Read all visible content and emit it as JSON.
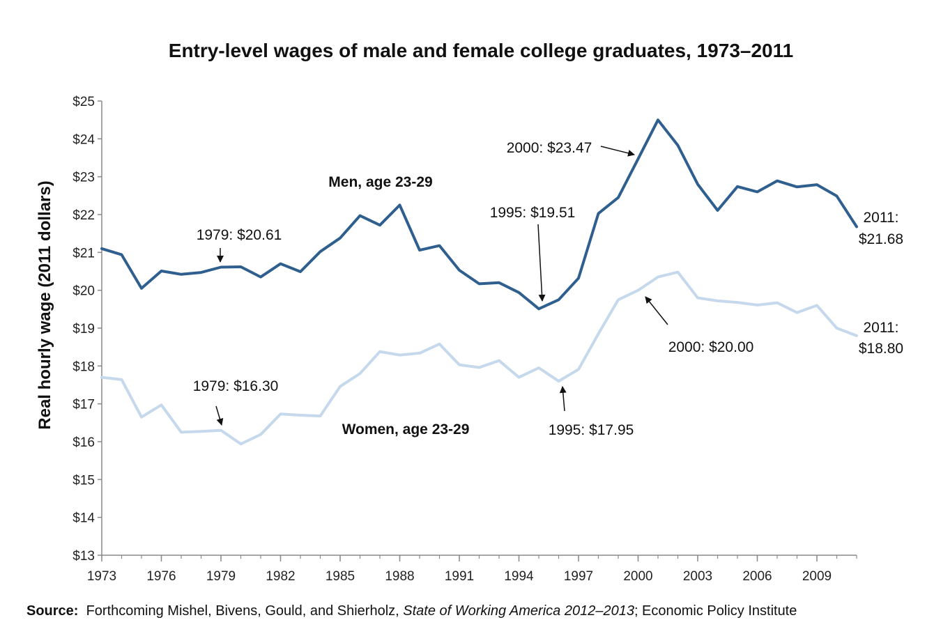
{
  "chart_data": {
    "type": "line",
    "title": "Entry-level wages of male and female college graduates, 1973–2011",
    "ylabel": "Real hourly wage (2011 dollars)",
    "xlabel": "",
    "xlim": [
      1973,
      2011
    ],
    "ylim": [
      13,
      25
    ],
    "grid": false,
    "x_ticks": [
      "1973",
      "1976",
      "1979",
      "1982",
      "1985",
      "1988",
      "1991",
      "1994",
      "1997",
      "2000",
      "2003",
      "2006",
      "2009"
    ],
    "y_ticks": [
      "$13",
      "$14",
      "$15",
      "$16",
      "$17",
      "$18",
      "$19",
      "$20",
      "$21",
      "$22",
      "$23",
      "$24",
      "$25"
    ],
    "x": [
      1973,
      1974,
      1975,
      1976,
      1977,
      1978,
      1979,
      1980,
      1981,
      1982,
      1983,
      1984,
      1985,
      1986,
      1987,
      1988,
      1989,
      1990,
      1991,
      1992,
      1993,
      1994,
      1995,
      1996,
      1997,
      1998,
      1999,
      2000,
      2001,
      2002,
      2003,
      2004,
      2005,
      2006,
      2007,
      2008,
      2009,
      2010,
      2011
    ],
    "series": [
      {
        "name": "Men, age 23-29",
        "color": "#2f5f8f",
        "values": [
          21.1,
          20.94,
          20.05,
          20.51,
          20.42,
          20.47,
          20.61,
          20.62,
          20.35,
          20.7,
          20.49,
          21.02,
          21.38,
          21.97,
          21.72,
          22.25,
          21.06,
          21.18,
          20.53,
          20.17,
          20.2,
          19.94,
          19.51,
          19.75,
          20.32,
          22.03,
          22.45,
          23.47,
          24.5,
          23.83,
          22.8,
          22.11,
          22.74,
          22.6,
          22.89,
          22.73,
          22.79,
          22.49,
          21.68
        ]
      },
      {
        "name": "Women, age 23-29",
        "color": "#c5d8ec",
        "values": [
          17.7,
          17.64,
          16.65,
          16.97,
          16.25,
          16.27,
          16.3,
          15.94,
          16.19,
          16.73,
          16.7,
          16.68,
          17.46,
          17.8,
          18.38,
          18.29,
          18.34,
          18.58,
          18.03,
          17.96,
          18.14,
          17.7,
          17.95,
          17.6,
          17.91,
          18.85,
          19.75,
          20.0,
          20.35,
          20.48,
          19.8,
          19.72,
          19.68,
          19.61,
          19.67,
          19.41,
          19.6,
          19.0,
          18.8
        ]
      }
    ],
    "annotations": [
      {
        "text": "1979: $20.61"
      },
      {
        "text": "1995: $19.51"
      },
      {
        "text": "2000: $23.47"
      },
      {
        "text": "2011:",
        "text2": "$21.68"
      },
      {
        "text": "1979: $16.30"
      },
      {
        "text": "1995: $17.95"
      },
      {
        "text": "2000: $20.00"
      },
      {
        "text": "2011:",
        "text2": "$18.80"
      }
    ]
  },
  "source": {
    "label": "Source:",
    "text_before": "Forthcoming Mishel, Bivens, Gould, and Shierholz,",
    "publication": "State of Working America 2012–2013",
    "text_after": "; Economic Policy Institute"
  }
}
